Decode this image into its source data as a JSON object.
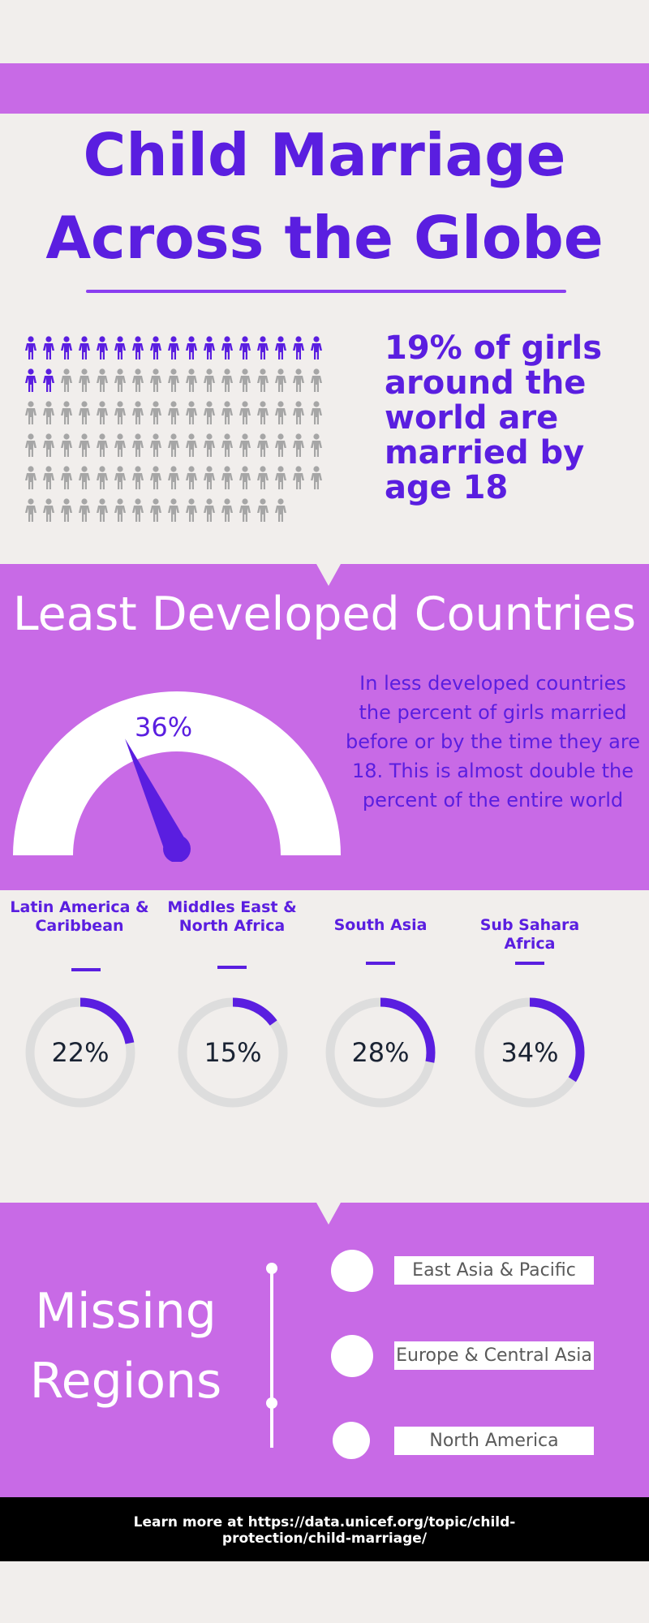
{
  "header": {
    "title_line1": "Child Marriage",
    "title_line2": "Across the Globe"
  },
  "stat": {
    "text": "19% of girls around the world are married by age 18",
    "percent": 19,
    "highlight_color": "#5a1ee0",
    "base_color": "#a6a6a6"
  },
  "ldc": {
    "title": "Least Developed Countries",
    "description": "In less developed countries the percent of girls married before or by the time they are 18. This is almost double the percent of the entire world",
    "gauge_value": "36%",
    "gauge_percent": 36
  },
  "regions": [
    {
      "name": "Latin America & Caribbean",
      "value": "22%",
      "percent": 22
    },
    {
      "name": "Middles East & North Africa",
      "value": "15%",
      "percent": 15
    },
    {
      "name": "South Asia",
      "value": "28%",
      "percent": 28
    },
    {
      "name": "Sub Sahara Africa",
      "value": "34%",
      "percent": 34
    }
  ],
  "missing_regions": {
    "title": "Missing Regions",
    "items": [
      "East Asia & Pacific",
      "Europe & Central Asia",
      "North America"
    ]
  },
  "footer": {
    "text": "Learn more at https://data.unicef.org/topic/child-protection/child-marriage/"
  },
  "colors": {
    "accent": "#5a1ee0",
    "panel": "#c86ae6",
    "background": "#f1eeec",
    "donut_track": "#dddddd"
  }
}
